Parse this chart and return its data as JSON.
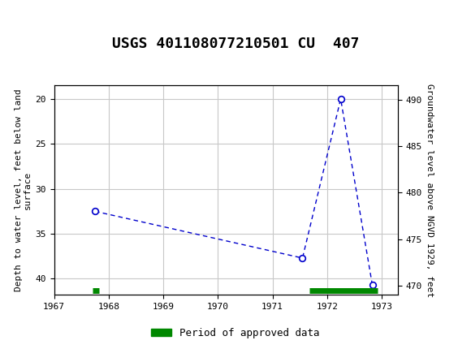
{
  "title": "USGS 401108077210501 CU  407",
  "ylabel_left": "Depth to water level, feet below land\nsurface",
  "ylabel_right": "Groundwater level above NGVD 1929, feet",
  "header_color": "#006633",
  "header_text_color": "#ffffff",
  "plot_bg": "#ffffff",
  "grid_color": "#c8c8c8",
  "line_color": "#0000cc",
  "marker_color": "#0000cc",
  "approved_bar_color": "#008800",
  "xlim": [
    1967.0,
    1973.3
  ],
  "ylim_left": [
    41.8,
    18.5
  ],
  "ylim_right": [
    469.0,
    491.5
  ],
  "xtick_values": [
    1967,
    1968,
    1969,
    1970,
    1971,
    1972,
    1973
  ],
  "xtick_labels": [
    "1967",
    "1968",
    "1969",
    "1970",
    "1971",
    "1972",
    "1973"
  ],
  "ytick_left": [
    20,
    25,
    30,
    35,
    40
  ],
  "ytick_right": [
    490,
    485,
    480,
    475,
    470
  ],
  "data_x": [
    1967.75,
    1971.55,
    1972.25,
    1972.83
  ],
  "data_y": [
    32.5,
    37.7,
    20.0,
    40.7
  ],
  "approved_bars": [
    {
      "x_start": 1967.71,
      "x_end": 1967.82,
      "y": 41.3
    },
    {
      "x_start": 1971.68,
      "x_end": 1972.92,
      "y": 41.3
    }
  ],
  "legend_label": "Period of approved data",
  "fontsize_title": 13,
  "fontsize_axis": 8,
  "fontsize_tick": 8,
  "fontsize_legend": 9
}
